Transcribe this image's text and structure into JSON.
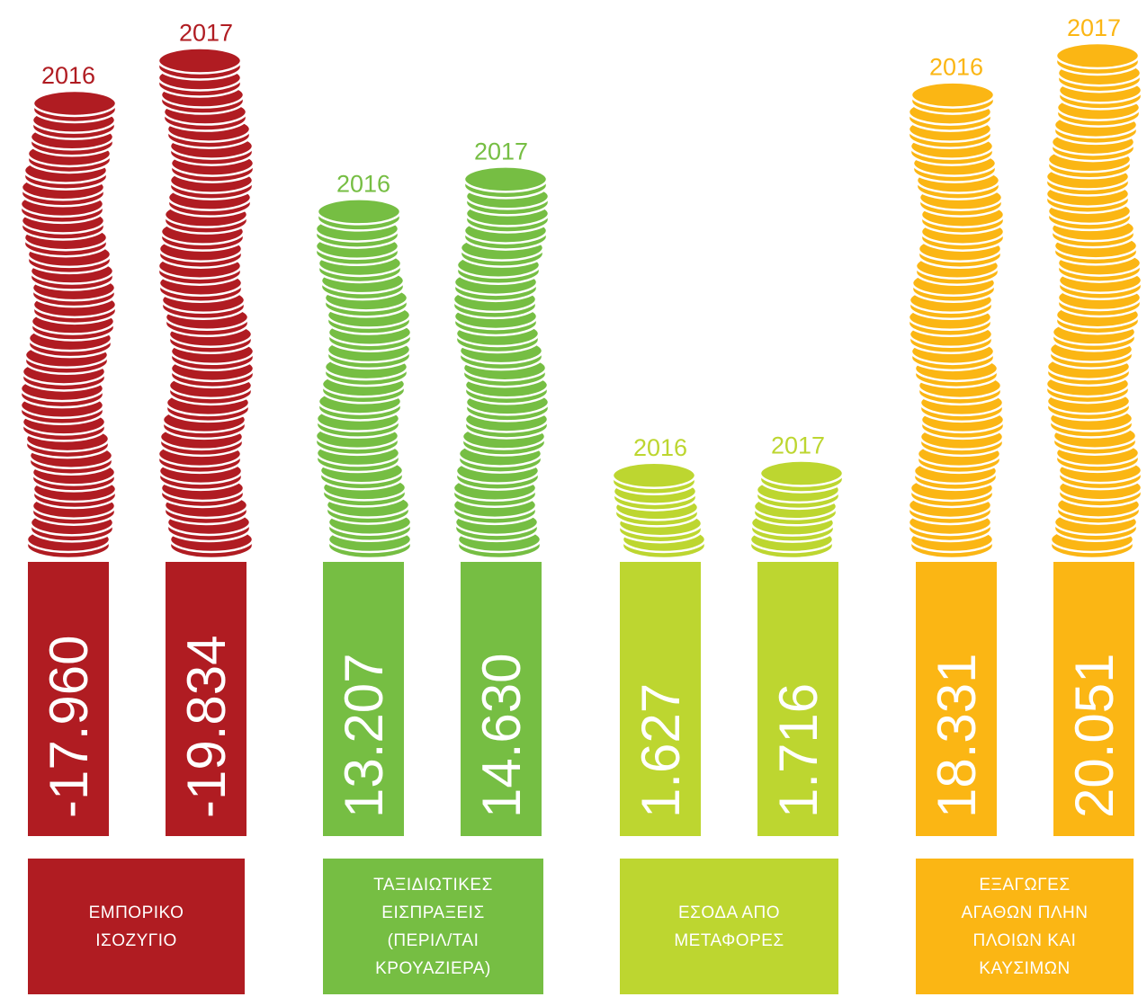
{
  "chart_data": {
    "type": "bar",
    "groups": [
      {
        "category": "ΕΜΠΟΡΙΚΟ\nΙΣΟΖΥΓΙΟ",
        "color": "#B01C22",
        "bars": [
          {
            "year": "2016",
            "value": -17960,
            "value_label": "-17.960"
          },
          {
            "year": "2017",
            "value": -19834,
            "value_label": "-19.834"
          }
        ]
      },
      {
        "category": "ΤΑΞΙΔΙΩΤΙΚΕΣ\nΕΙΣΠΡΑΞΕΙΣ\n(ΠΕΡΙΛ/ΤΑΙ\nΚΡΟΥΑΖΙΕΡΑ)",
        "color": "#76BE43",
        "bars": [
          {
            "year": "2016",
            "value": 13207,
            "value_label": "13.207"
          },
          {
            "year": "2017",
            "value": 14630,
            "value_label": "14.630"
          }
        ]
      },
      {
        "category": "ΕΣΟΔΑ ΑΠΟ\nΜΕΤΑΦΟΡΕΣ",
        "color": "#BDD630",
        "bars": [
          {
            "year": "2016",
            "value": 1627,
            "value_label": "1.627"
          },
          {
            "year": "2017",
            "value": 1716,
            "value_label": "1.716"
          }
        ]
      },
      {
        "category": "ΕΞΑΓΩΓΕΣ\nΑΓΑΘΩΝ ΠΛΗΝ\nΠΛΟΙΩΝ ΚΑΙ\nΚΑΥΣΙΜΩΝ",
        "color": "#FBB614",
        "bars": [
          {
            "year": "2016",
            "value": 18331,
            "value_label": "18.331"
          },
          {
            "year": "2017",
            "value": 20051,
            "value_label": "20.051"
          }
        ]
      }
    ]
  }
}
